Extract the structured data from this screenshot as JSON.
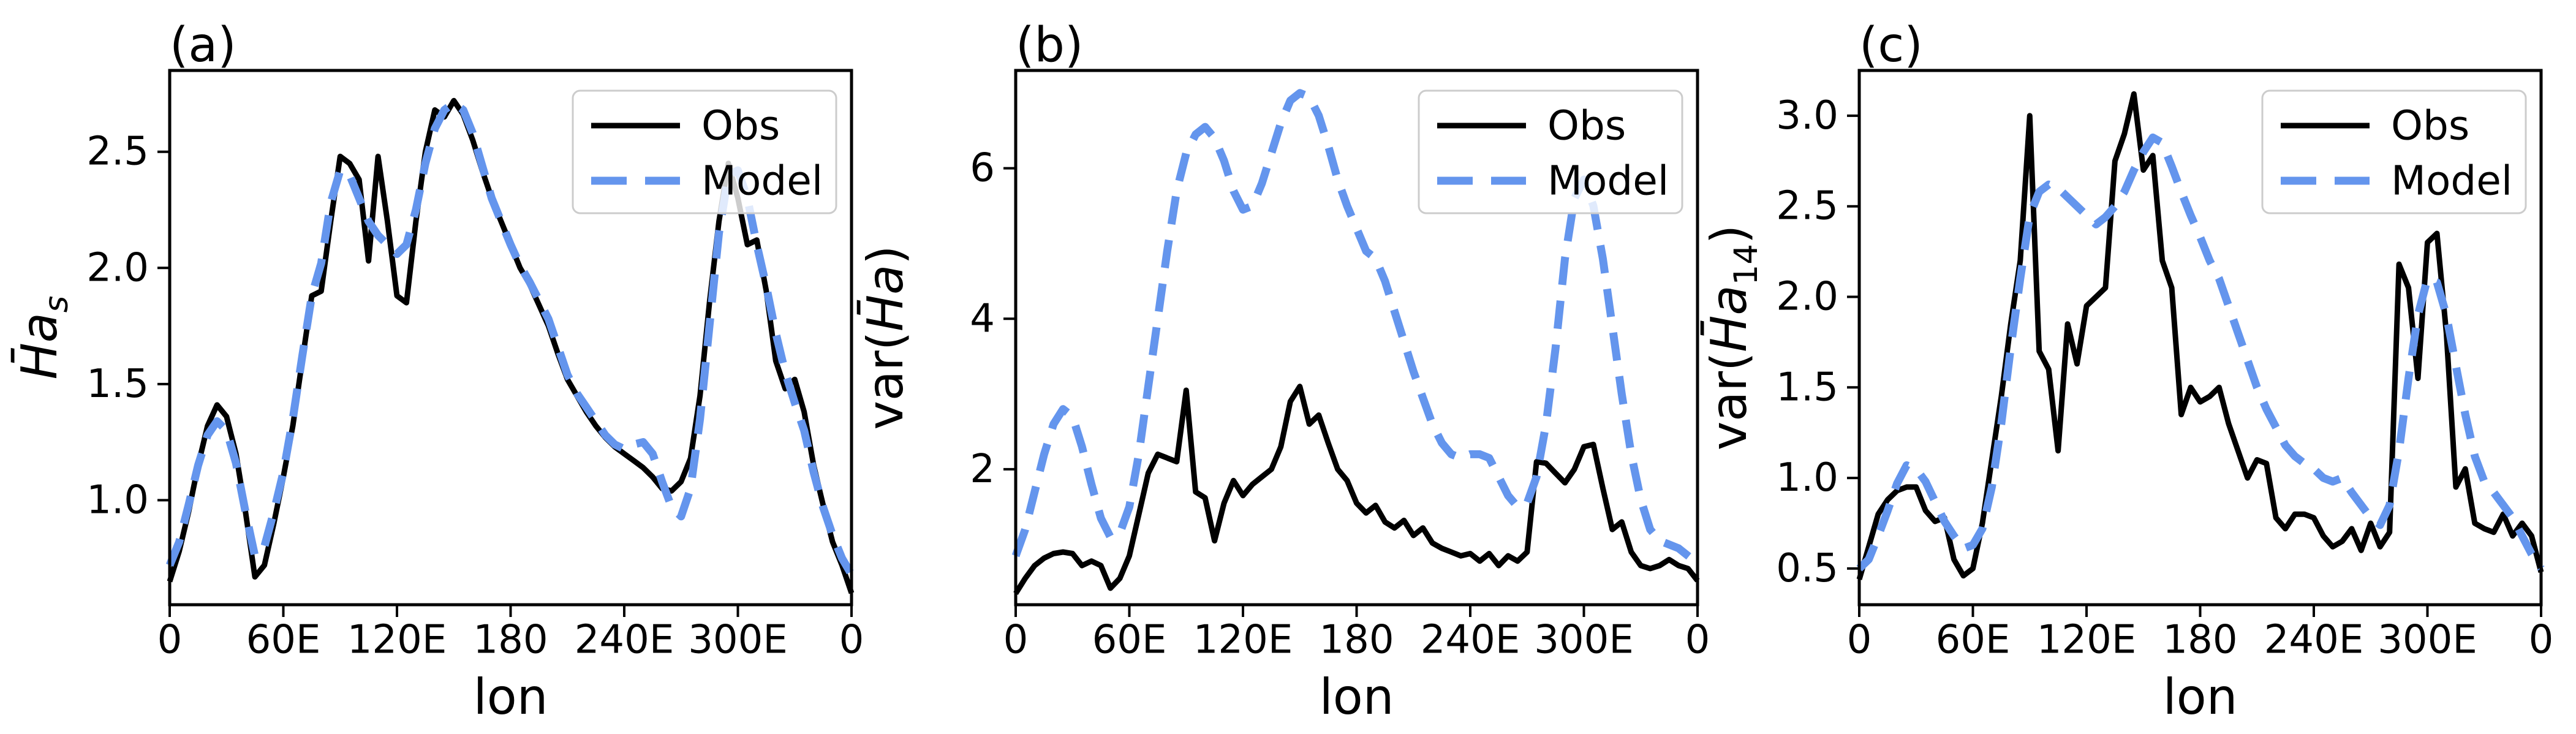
{
  "figure": {
    "background": "#ffffff",
    "colors": {
      "obs": "#000000",
      "model": "#6495ED",
      "legend_border": "#cccccc",
      "legend_fill_alpha": 0.8
    }
  },
  "legend": {
    "entries": [
      {
        "label": "Obs"
      },
      {
        "label": "Model"
      }
    ],
    "position": "upper right"
  },
  "chart_data": {
    "type": "line",
    "xlabel": "lon",
    "x_range": [
      0,
      360
    ],
    "x_tick_values": [
      0,
      60,
      120,
      180,
      240,
      300,
      360
    ],
    "x_tick_labels": [
      "0",
      "60E",
      "120E",
      "180",
      "240E",
      "300E",
      "0"
    ],
    "grid": false,
    "x": [
      0,
      5,
      10,
      15,
      20,
      25,
      30,
      35,
      40,
      45,
      50,
      55,
      60,
      65,
      70,
      75,
      80,
      85,
      90,
      95,
      100,
      105,
      110,
      115,
      120,
      125,
      130,
      135,
      140,
      145,
      150,
      155,
      160,
      165,
      170,
      175,
      180,
      185,
      190,
      195,
      200,
      205,
      210,
      215,
      220,
      225,
      230,
      235,
      240,
      245,
      250,
      255,
      260,
      265,
      270,
      275,
      280,
      285,
      290,
      295,
      300,
      305,
      310,
      315,
      320,
      325,
      330,
      335,
      340,
      345,
      350,
      355,
      360
    ],
    "panels": [
      {
        "id": "a",
        "title": "(a)",
        "ylabel": "H̄aₛ",
        "ylabel_parts": {
          "pre": "",
          "math": "H̄a",
          "sub": "s",
          "sub_italic": true,
          "post": ""
        },
        "ylim": [
          0.55,
          2.85
        ],
        "y_tick_values": [
          1.0,
          1.5,
          2.0,
          2.5
        ],
        "y_tick_labels": [
          "1.0",
          "1.5",
          "2.0",
          "2.5"
        ],
        "series": [
          {
            "name": "Obs",
            "color": "#000000",
            "style": "solid",
            "values": [
              0.65,
              0.78,
              0.95,
              1.15,
              1.32,
              1.41,
              1.36,
              1.2,
              0.95,
              0.67,
              0.72,
              0.9,
              1.1,
              1.32,
              1.6,
              1.88,
              1.9,
              2.2,
              2.48,
              2.45,
              2.38,
              2.03,
              2.48,
              2.2,
              1.88,
              1.85,
              2.2,
              2.5,
              2.68,
              2.65,
              2.72,
              2.66,
              2.55,
              2.42,
              2.3,
              2.2,
              2.1,
              2.0,
              1.93,
              1.84,
              1.75,
              1.63,
              1.52,
              1.45,
              1.38,
              1.32,
              1.27,
              1.23,
              1.2,
              1.17,
              1.14,
              1.1,
              1.05,
              1.04,
              1.08,
              1.18,
              1.45,
              1.85,
              2.2,
              2.45,
              2.3,
              2.1,
              2.12,
              1.9,
              1.6,
              1.48,
              1.52,
              1.38,
              1.15,
              0.98,
              0.82,
              0.72,
              0.6
            ]
          },
          {
            "name": "Model",
            "color": "#6495ED",
            "style": "dashed",
            "values": [
              0.72,
              0.82,
              0.98,
              1.15,
              1.28,
              1.34,
              1.3,
              1.16,
              0.95,
              0.76,
              0.8,
              0.95,
              1.12,
              1.35,
              1.62,
              1.88,
              2.02,
              2.28,
              2.42,
              2.4,
              2.3,
              2.2,
              2.14,
              2.1,
              2.06,
              2.1,
              2.25,
              2.45,
              2.6,
              2.68,
              2.71,
              2.68,
              2.58,
              2.44,
              2.3,
              2.2,
              2.1,
              2.01,
              1.94,
              1.86,
              1.78,
              1.66,
              1.54,
              1.46,
              1.4,
              1.34,
              1.28,
              1.24,
              1.22,
              1.24,
              1.25,
              1.2,
              1.08,
              0.97,
              0.93,
              1.05,
              1.35,
              1.75,
              2.15,
              2.4,
              2.42,
              2.3,
              2.1,
              1.92,
              1.72,
              1.55,
              1.42,
              1.3,
              1.12,
              0.97,
              0.85,
              0.75,
              0.68
            ]
          }
        ]
      },
      {
        "id": "b",
        "title": "(b)",
        "ylabel": "var(H̄a)",
        "ylabel_parts": {
          "pre": "var(",
          "math": "H̄a",
          "sub": "",
          "sub_italic": false,
          "post": ")"
        },
        "ylim": [
          0.2,
          7.3
        ],
        "y_tick_values": [
          2,
          4,
          6
        ],
        "y_tick_labels": [
          "2",
          "4",
          "6"
        ],
        "series": [
          {
            "name": "Obs",
            "color": "#000000",
            "style": "solid",
            "values": [
              0.35,
              0.55,
              0.72,
              0.82,
              0.88,
              0.9,
              0.88,
              0.72,
              0.78,
              0.72,
              0.42,
              0.55,
              0.85,
              1.4,
              1.95,
              2.2,
              2.15,
              2.1,
              3.05,
              1.7,
              1.62,
              1.05,
              1.55,
              1.85,
              1.65,
              1.8,
              1.9,
              2.0,
              2.3,
              2.9,
              3.1,
              2.6,
              2.72,
              2.35,
              2.0,
              1.85,
              1.55,
              1.42,
              1.52,
              1.3,
              1.22,
              1.32,
              1.12,
              1.22,
              1.02,
              0.95,
              0.9,
              0.85,
              0.88,
              0.78,
              0.88,
              0.72,
              0.85,
              0.78,
              0.9,
              2.1,
              2.08,
              1.95,
              1.82,
              2.0,
              2.3,
              2.33,
              1.75,
              1.2,
              1.3,
              0.9,
              0.72,
              0.68,
              0.72,
              0.8,
              0.72,
              0.68,
              0.52
            ]
          },
          {
            "name": "Model",
            "color": "#6495ED",
            "style": "dashed",
            "values": [
              0.85,
              1.2,
              1.7,
              2.2,
              2.6,
              2.8,
              2.7,
              2.3,
              1.8,
              1.35,
              1.1,
              1.15,
              1.5,
              2.2,
              3.1,
              4.0,
              4.9,
              5.7,
              6.2,
              6.45,
              6.55,
              6.4,
              6.1,
              5.7,
              5.45,
              5.5,
              5.8,
              6.2,
              6.6,
              6.9,
              7.0,
              6.95,
              6.7,
              6.3,
              5.85,
              5.5,
              5.2,
              4.9,
              4.8,
              4.5,
              4.1,
              3.7,
              3.3,
              2.95,
              2.6,
              2.35,
              2.2,
              2.15,
              2.2,
              2.2,
              2.15,
              1.9,
              1.65,
              1.5,
              1.55,
              1.9,
              2.6,
              3.6,
              4.8,
              5.6,
              5.85,
              5.5,
              4.8,
              3.9,
              3.0,
              2.2,
              1.6,
              1.2,
              1.05,
              1.0,
              0.95,
              0.85,
              0.75
            ]
          }
        ]
      },
      {
        "id": "c",
        "title": "(c)",
        "ylabel": "var(H̄a₁₄)",
        "ylabel_parts": {
          "pre": "var(",
          "math": "H̄a",
          "sub": "14",
          "sub_italic": false,
          "post": ")"
        },
        "ylim": [
          0.3,
          3.25
        ],
        "y_tick_values": [
          0.5,
          1.0,
          1.5,
          2.0,
          2.5,
          3.0
        ],
        "y_tick_labels": [
          "0.5",
          "1.0",
          "1.5",
          "2.0",
          "2.5",
          "3.0"
        ],
        "series": [
          {
            "name": "Obs",
            "color": "#000000",
            "style": "solid",
            "values": [
              0.44,
              0.62,
              0.8,
              0.88,
              0.93,
              0.95,
              0.95,
              0.82,
              0.76,
              0.78,
              0.55,
              0.46,
              0.5,
              0.75,
              1.1,
              1.45,
              1.85,
              2.2,
              3.0,
              1.7,
              1.6,
              1.15,
              1.85,
              1.63,
              1.95,
              2.0,
              2.05,
              2.75,
              2.9,
              3.12,
              2.7,
              2.78,
              2.2,
              2.05,
              1.35,
              1.5,
              1.42,
              1.45,
              1.5,
              1.3,
              1.15,
              1.0,
              1.1,
              1.08,
              0.78,
              0.72,
              0.8,
              0.8,
              0.78,
              0.68,
              0.62,
              0.65,
              0.72,
              0.6,
              0.75,
              0.62,
              0.7,
              2.18,
              2.05,
              1.55,
              2.3,
              2.35,
              1.8,
              0.95,
              1.05,
              0.75,
              0.72,
              0.7,
              0.8,
              0.68,
              0.75,
              0.68,
              0.48
            ]
          },
          {
            "name": "Model",
            "color": "#6495ED",
            "style": "dashed",
            "values": [
              0.5,
              0.55,
              0.68,
              0.82,
              0.97,
              1.07,
              1.05,
              0.98,
              0.87,
              0.76,
              0.68,
              0.61,
              0.63,
              0.72,
              0.95,
              1.3,
              1.72,
              2.1,
              2.45,
              2.58,
              2.62,
              2.6,
              2.55,
              2.5,
              2.45,
              2.4,
              2.44,
              2.5,
              2.58,
              2.7,
              2.8,
              2.88,
              2.85,
              2.72,
              2.58,
              2.45,
              2.33,
              2.2,
              2.1,
              1.95,
              1.8,
              1.65,
              1.5,
              1.38,
              1.28,
              1.18,
              1.12,
              1.08,
              1.05,
              1.0,
              0.98,
              1.0,
              0.92,
              0.85,
              0.78,
              0.74,
              0.85,
              1.15,
              1.55,
              1.9,
              2.1,
              2.08,
              1.9,
              1.62,
              1.35,
              1.12,
              0.98,
              0.92,
              0.85,
              0.78,
              0.68,
              0.58,
              0.5
            ]
          }
        ]
      }
    ]
  }
}
